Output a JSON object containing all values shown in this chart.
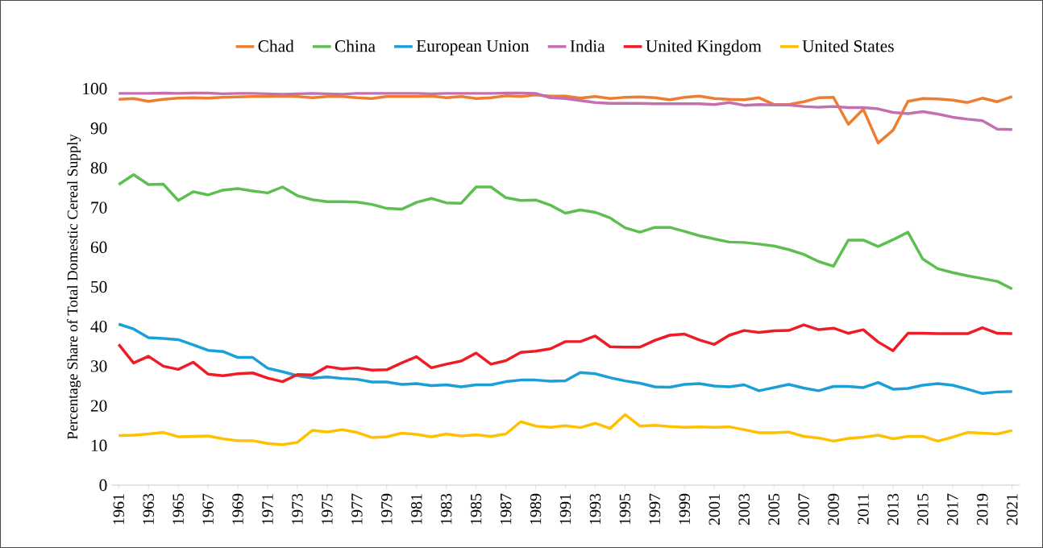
{
  "chart_data": {
    "type": "line",
    "ylabel": "Percentage Share of Total Domestic Cereal Supply",
    "categories": [
      "1961",
      null,
      "1963",
      null,
      "1965",
      null,
      "1967",
      null,
      "1969",
      null,
      "1971",
      null,
      "1973",
      null,
      "1975",
      null,
      "1977",
      null,
      "1979",
      null,
      "1981",
      null,
      "1983",
      null,
      "1985",
      null,
      "1987",
      null,
      "1989",
      null,
      "1991",
      null,
      "1993",
      null,
      "1995",
      null,
      "1997",
      null,
      "1999",
      null,
      "2001",
      null,
      "2003",
      null,
      "2005",
      null,
      "2007",
      null,
      "2009",
      null,
      "2011",
      null,
      "2013",
      null,
      "2015",
      null,
      "2017",
      null,
      "2019",
      null,
      "2021"
    ],
    "series": [
      {
        "name": "Chad",
        "color": "#ed7d31",
        "values": [
          97.3,
          97.5,
          96.8,
          97.3,
          97.6,
          97.7,
          97.6,
          97.8,
          97.9,
          98.0,
          98.0,
          98.1,
          98.0,
          97.7,
          98.0,
          98.0,
          97.7,
          97.5,
          98.0,
          98.0,
          98.0,
          98.1,
          97.7,
          98.0,
          97.5,
          97.7,
          98.2,
          98.0,
          98.4,
          98.1,
          98.1,
          97.6,
          98.0,
          97.5,
          97.8,
          97.9,
          97.7,
          97.2,
          97.8,
          98.1,
          97.5,
          97.3,
          97.2,
          97.7,
          96.0,
          96.0,
          96.7,
          97.7,
          97.8,
          91.0,
          94.8,
          86.3,
          89.5,
          96.8,
          97.5,
          97.4,
          97.1,
          96.5,
          97.6,
          96.7,
          98.0
        ]
      },
      {
        "name": "China",
        "color": "#5cbf4f",
        "values": [
          75.8,
          78.3,
          75.8,
          75.9,
          71.8,
          74.0,
          73.2,
          74.4,
          74.8,
          74.2,
          73.7,
          75.2,
          73.0,
          72.0,
          71.5,
          71.5,
          71.4,
          70.8,
          69.8,
          69.6,
          71.3,
          72.3,
          71.2,
          71.1,
          75.2,
          75.2,
          72.5,
          71.8,
          71.9,
          70.6,
          68.6,
          69.4,
          68.8,
          67.4,
          64.9,
          63.8,
          65.0,
          65.0,
          64.0,
          62.9,
          62.1,
          61.3,
          61.2,
          60.8,
          60.3,
          59.4,
          58.2,
          56.4,
          55.2,
          61.8,
          61.8,
          60.2,
          61.9,
          63.8,
          57.0,
          54.6,
          53.6,
          52.8,
          52.1,
          51.4,
          49.5
        ]
      },
      {
        "name": "European Union",
        "color": "#1a9fd9",
        "values": [
          40.6,
          39.4,
          37.2,
          37.0,
          36.7,
          35.4,
          34.0,
          33.7,
          32.2,
          32.2,
          29.5,
          28.6,
          27.6,
          27.0,
          27.3,
          26.9,
          26.7,
          26.0,
          26.0,
          25.4,
          25.6,
          25.1,
          25.3,
          24.8,
          25.3,
          25.3,
          26.1,
          26.5,
          26.5,
          26.2,
          26.3,
          28.4,
          28.1,
          27.1,
          26.3,
          25.7,
          24.8,
          24.7,
          25.4,
          25.6,
          25.0,
          24.8,
          25.3,
          23.8,
          24.6,
          25.4,
          24.5,
          23.8,
          24.9,
          24.9,
          24.6,
          25.9,
          24.2,
          24.4,
          25.2,
          25.6,
          25.2,
          24.2,
          23.1,
          23.5,
          23.6
        ]
      },
      {
        "name": "India",
        "color": "#c46fb0",
        "values": [
          98.8,
          98.8,
          98.8,
          98.9,
          98.8,
          98.9,
          98.9,
          98.7,
          98.8,
          98.8,
          98.7,
          98.6,
          98.7,
          98.8,
          98.7,
          98.6,
          98.8,
          98.8,
          98.8,
          98.8,
          98.8,
          98.7,
          98.8,
          98.8,
          98.8,
          98.8,
          98.9,
          98.9,
          98.8,
          97.7,
          97.5,
          97.0,
          96.5,
          96.3,
          96.3,
          96.3,
          96.2,
          96.2,
          96.2,
          96.2,
          96.0,
          96.5,
          95.8,
          96.0,
          95.9,
          95.9,
          95.5,
          95.3,
          95.5,
          95.2,
          95.2,
          94.9,
          94.0,
          93.7,
          94.2,
          93.6,
          92.8,
          92.3,
          91.9,
          89.8,
          89.7
        ]
      },
      {
        "name": "United Kingdom",
        "color": "#ee1c25",
        "values": [
          35.5,
          30.8,
          32.5,
          30.0,
          29.2,
          31.0,
          28.0,
          27.6,
          28.1,
          28.3,
          27.0,
          26.1,
          27.9,
          27.8,
          29.9,
          29.3,
          29.6,
          29.0,
          29.1,
          30.8,
          32.4,
          29.6,
          30.5,
          31.3,
          33.3,
          30.5,
          31.4,
          33.5,
          33.8,
          34.4,
          36.2,
          36.2,
          37.6,
          34.9,
          34.8,
          34.8,
          36.5,
          37.8,
          38.1,
          36.6,
          35.5,
          37.8,
          39.0,
          38.5,
          38.9,
          39.0,
          40.4,
          39.2,
          39.6,
          38.3,
          39.2,
          36.1,
          33.9,
          38.3,
          38.3,
          38.2,
          38.2,
          38.2,
          39.7,
          38.3,
          38.2
        ]
      },
      {
        "name": "United States",
        "color": "#ffc000",
        "values": [
          12.5,
          12.6,
          12.9,
          13.3,
          12.2,
          12.3,
          12.4,
          11.7,
          11.2,
          11.2,
          10.5,
          10.2,
          10.8,
          13.8,
          13.4,
          14.0,
          13.3,
          12.0,
          12.2,
          13.1,
          12.8,
          12.2,
          12.9,
          12.4,
          12.7,
          12.3,
          12.9,
          16.0,
          14.9,
          14.6,
          15.0,
          14.5,
          15.6,
          14.3,
          17.8,
          14.9,
          15.1,
          14.8,
          14.6,
          14.7,
          14.6,
          14.7,
          14.0,
          13.2,
          13.2,
          13.4,
          12.3,
          11.9,
          11.1,
          11.8,
          12.1,
          12.6,
          11.7,
          12.3,
          12.3,
          11.1,
          12.1,
          13.3,
          13.1,
          12.9,
          13.8
        ]
      }
    ],
    "ylim": [
      0,
      100
    ],
    "yticks": [
      0,
      10,
      20,
      30,
      40,
      50,
      60,
      70,
      80,
      90,
      100
    ],
    "grid": false,
    "legend": "top",
    "marker": "none",
    "line_style": "solid"
  }
}
